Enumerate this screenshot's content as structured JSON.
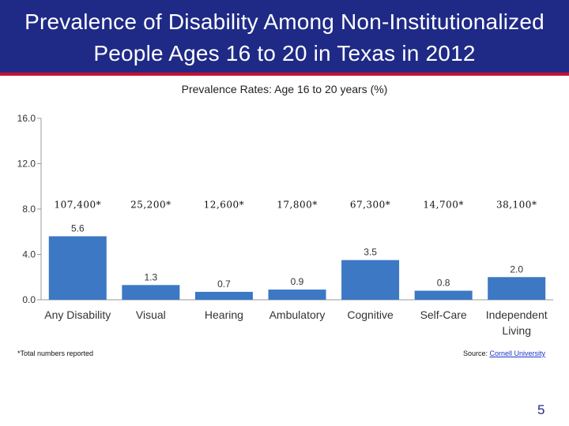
{
  "slide": {
    "title_line1": "Prevalence of Disability Among Non-Institutionalized",
    "title_line2": "People Ages 16 to 20 in Texas in 2012",
    "footnote": "*Total numbers reported",
    "source_prefix": "Source: ",
    "source_link": "Cornell University",
    "page_number": "5"
  },
  "colors": {
    "header": "#1f2a86",
    "accent_rule": "#c8102e",
    "bar": "#3c78c3"
  },
  "chart_data": {
    "type": "bar",
    "title": "Prevalence Rates: Age 16 to 20 years (%)",
    "categories": [
      "Any Disability",
      "Visual",
      "Hearing",
      "Ambulatory",
      "Cognitive",
      "Self-Care",
      "Independent Living"
    ],
    "values": [
      5.6,
      1.3,
      0.7,
      0.9,
      3.5,
      0.8,
      2.0
    ],
    "value_labels": [
      "5.6",
      "1.3",
      "0.7",
      "0.9",
      "3.5",
      "0.8",
      "2.0"
    ],
    "totals": [
      "107,400*",
      "25,200*",
      "12,600*",
      "17,800*",
      "67,300*",
      "14,700*",
      "38,100*"
    ],
    "yticks": [
      "0.0",
      "4.0",
      "8.0",
      "12.0",
      "16.0"
    ],
    "ytick_values": [
      0,
      4,
      8,
      12,
      16
    ],
    "ylim": [
      0,
      16
    ],
    "xlabel": "",
    "ylabel": "",
    "grid": false,
    "legend": "none"
  }
}
